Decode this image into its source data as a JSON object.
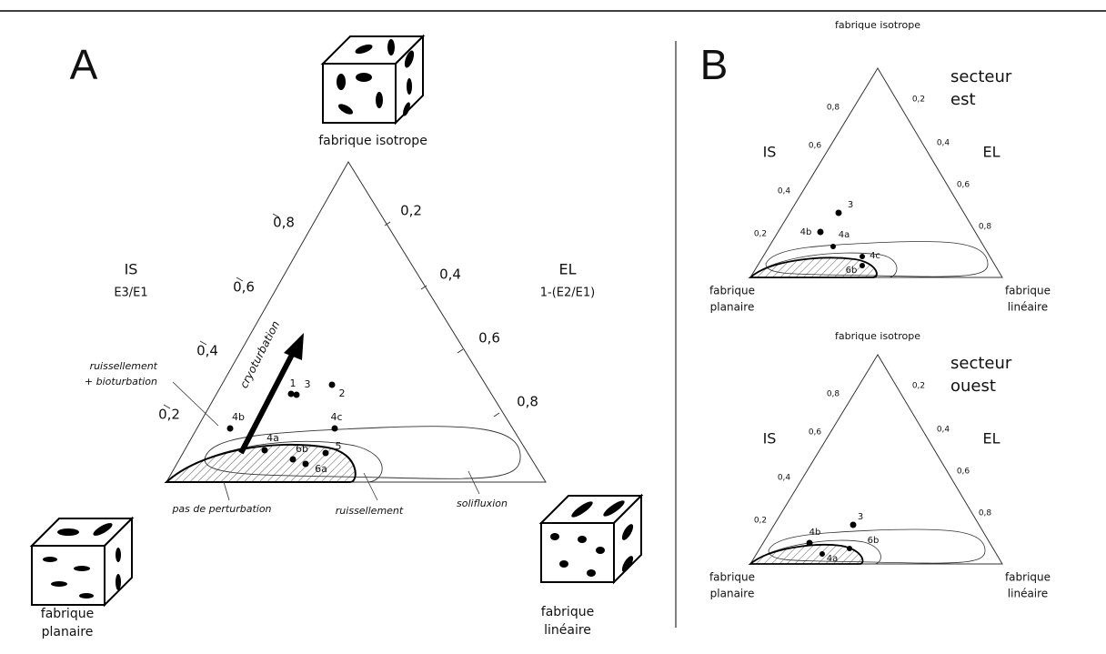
{
  "panel_a": {
    "label": "A",
    "apex": "fabrique isotrope",
    "left_axis": {
      "name": "IS",
      "formula": "E3/E1",
      "ticks": [
        "0,8",
        "0,6",
        "0,4",
        "0,2"
      ]
    },
    "right_axis": {
      "name": "EL",
      "formula": "1-(E2/E1)",
      "ticks": [
        "0,2",
        "0,4",
        "0,6",
        "0,8"
      ]
    },
    "arrow_label": "cryoturbation",
    "annotations": [
      "ruissellement",
      "+ bioturbation",
      "pas de perturbation",
      "ruissellement",
      "solifluxion"
    ],
    "points": [
      "1",
      "3",
      "2",
      "4b",
      "4c",
      "4a",
      "6b",
      "5",
      "6a"
    ],
    "corner_left": [
      "fabrique",
      "planaire"
    ],
    "corner_right": [
      "fabrique",
      "linéaire"
    ]
  },
  "panel_b": {
    "label": "B",
    "sectors": [
      {
        "apex": "fabrique isotrope",
        "title": [
          "secteur",
          "est"
        ],
        "left_axis": {
          "name": "IS",
          "ticks": [
            "0,8",
            "0,6",
            "0,4",
            "0,2"
          ]
        },
        "right_axis": {
          "name": "EL",
          "ticks": [
            "0,2",
            "0,4",
            "0,6",
            "0,8"
          ]
        },
        "points": [
          "3",
          "4b",
          "4a",
          "4c",
          "6b"
        ],
        "corner_left": [
          "fabrique",
          "planaire"
        ],
        "corner_right": [
          "fabrique",
          "linéaire"
        ]
      },
      {
        "apex": "fabrique isotrope",
        "title": [
          "secteur",
          "ouest"
        ],
        "left_axis": {
          "name": "IS",
          "ticks": [
            "0,8",
            "0,6",
            "0,4",
            "0,2"
          ]
        },
        "right_axis": {
          "name": "EL",
          "ticks": [
            "0,2",
            "0,4",
            "0,6",
            "0,8"
          ]
        },
        "points": [
          "3",
          "4b",
          "6b",
          "4a"
        ],
        "corner_left": [
          "fabrique",
          "planaire"
        ],
        "corner_right": [
          "fabrique",
          "linéaire"
        ]
      }
    ]
  }
}
